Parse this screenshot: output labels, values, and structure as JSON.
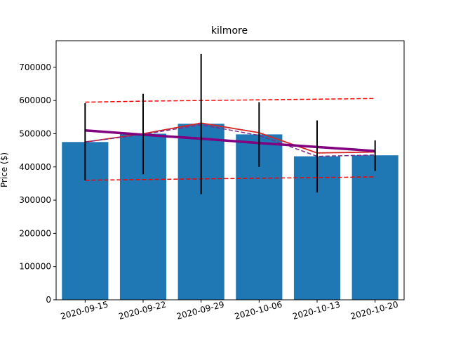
{
  "chart_data": {
    "type": "bar",
    "title": "kilmore",
    "xlabel": "",
    "ylabel": "Price ($)",
    "ylim": [
      0,
      780000
    ],
    "yticks": [
      0,
      100000,
      200000,
      300000,
      400000,
      500000,
      600000,
      700000
    ],
    "categories": [
      "2020-09-15",
      "2020-09-22",
      "2020-09-29",
      "2020-10-06",
      "2020-10-13",
      "2020-10-20"
    ],
    "series": [
      {
        "type": "bar",
        "color": "#1f77b4",
        "values": [
          475000,
          500000,
          530000,
          498000,
          432000,
          435000
        ],
        "error_low": [
          360000,
          378000,
          318000,
          400000,
          323000,
          388000
        ],
        "error_high": [
          592000,
          620000,
          740000,
          595000,
          540000,
          480000
        ]
      },
      {
        "type": "line",
        "color": "#d62728",
        "style": "solid",
        "values": [
          475000,
          500000,
          532000,
          503000,
          442000,
          445000
        ]
      },
      {
        "type": "line",
        "color": "#7b2d8e",
        "style": "dashed",
        "values": [
          475000,
          498000,
          527000,
          495000,
          432000,
          436000
        ]
      },
      {
        "type": "line",
        "color": "#800080",
        "style": "solid-thick",
        "values": [
          510000,
          497000,
          485000,
          472000,
          460000,
          448000
        ]
      },
      {
        "type": "line",
        "color": "#ff0000",
        "style": "dashed",
        "values": [
          595000,
          598000,
          600000,
          602000,
          604000,
          606000
        ]
      },
      {
        "type": "line",
        "color": "#ff0000",
        "style": "dashed",
        "values": [
          360000,
          362000,
          364000,
          366000,
          368000,
          370000
        ]
      }
    ],
    "grid": false,
    "legend": "none"
  }
}
